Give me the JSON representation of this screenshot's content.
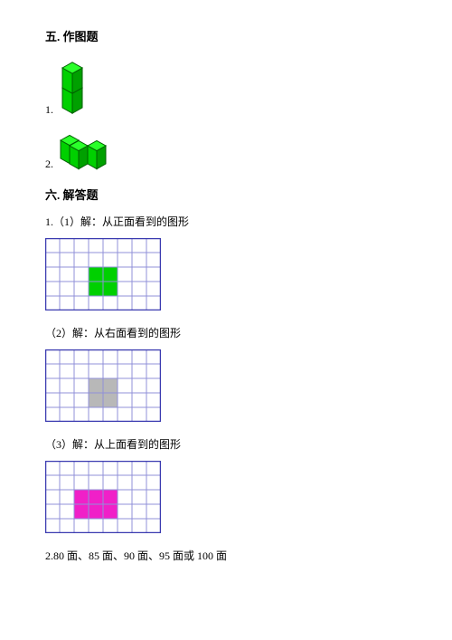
{
  "section5": {
    "title": "五. 作图题",
    "items": [
      {
        "num": "1."
      },
      {
        "num": "2."
      }
    ]
  },
  "section6": {
    "title": "六. 解答题",
    "parts": [
      {
        "label": "1.（1）解：从正面看到的图形"
      },
      {
        "label": "（2）解：从右面看到的图形"
      },
      {
        "label": "（3）解：从上面看到的图形"
      }
    ],
    "final": "2.80 面、85 面、90 面、95 面或 100 面"
  },
  "cube1": {
    "fill": "#00d000",
    "stroke": "#006000",
    "faceLight": "#2aff2a",
    "faceDark": "#00a000"
  },
  "cube2": {
    "fill": "#00d000",
    "stroke": "#006000",
    "faceLight": "#2aff2a",
    "faceDark": "#00a000"
  },
  "grid1": {
    "cols": 8,
    "rows": 5,
    "cellSize": 16,
    "border": "#3a3ab0",
    "line": "#9090d8",
    "bg": "#ffffff",
    "fill": "#00d000",
    "cells": [
      [
        3,
        2
      ],
      [
        4,
        2
      ],
      [
        3,
        3
      ],
      [
        4,
        3
      ]
    ]
  },
  "grid2": {
    "cols": 8,
    "rows": 5,
    "cellSize": 16,
    "border": "#3a3ab0",
    "line": "#9090d8",
    "bg": "#ffffff",
    "fill": "#b8b8b8",
    "cells": [
      [
        3,
        2
      ],
      [
        4,
        2
      ],
      [
        3,
        3
      ],
      [
        4,
        3
      ]
    ]
  },
  "grid3": {
    "cols": 8,
    "rows": 5,
    "cellSize": 16,
    "border": "#3a3ab0",
    "line": "#9090d8",
    "bg": "#ffffff",
    "fill": "#f020c8",
    "cells": [
      [
        2,
        2
      ],
      [
        3,
        2
      ],
      [
        4,
        2
      ],
      [
        2,
        3
      ],
      [
        3,
        3
      ],
      [
        4,
        3
      ]
    ]
  }
}
